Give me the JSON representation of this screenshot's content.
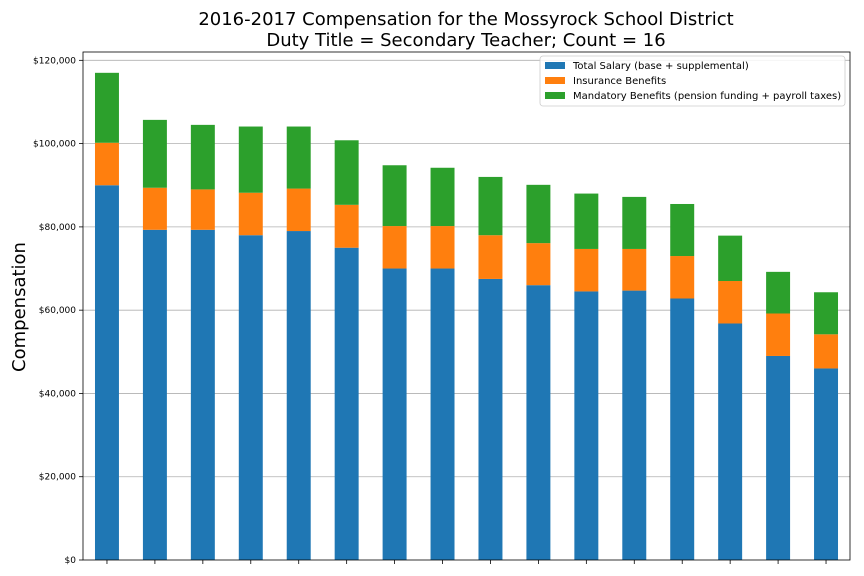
{
  "chart_data": {
    "type": "bar",
    "stacked": true,
    "title": "2016-2017 Compensation for the Mossyrock School District",
    "subtitle": "Duty Title = Secondary Teacher; Count = 16",
    "xlabel": "",
    "ylabel": "Compensation",
    "ylim": [
      0,
      122000
    ],
    "yticks": [
      0,
      20000,
      40000,
      60000,
      80000,
      100000,
      120000
    ],
    "ytick_labels": [
      "$0",
      "$20,000",
      "$40,000",
      "$60,000",
      "$80,000",
      "$100,000",
      "$120,000"
    ],
    "grid": "horizontal",
    "legend_position": "top-right",
    "bar_count": 16,
    "series": [
      {
        "name": "Total Salary (base + supplemental)",
        "color": "#1f77b4",
        "values": [
          90000,
          79300,
          79300,
          78000,
          79000,
          75000,
          70000,
          70000,
          67500,
          66000,
          64500,
          64700,
          62800,
          56800,
          49000,
          46000
        ]
      },
      {
        "name": "Insurance Benefits",
        "color": "#ff7f0e",
        "values": [
          10200,
          10100,
          9700,
          10200,
          10200,
          10300,
          10200,
          10200,
          10500,
          10100,
          10200,
          10000,
          10200,
          10200,
          10200,
          8200
        ]
      },
      {
        "name": "Mandatory Benefits (pension funding + payroll taxes)",
        "color": "#2ca02c",
        "values": [
          16800,
          16300,
          15500,
          15900,
          14900,
          15500,
          14600,
          14000,
          14000,
          14000,
          13300,
          12500,
          12500,
          10900,
          10000,
          10100
        ]
      }
    ]
  }
}
